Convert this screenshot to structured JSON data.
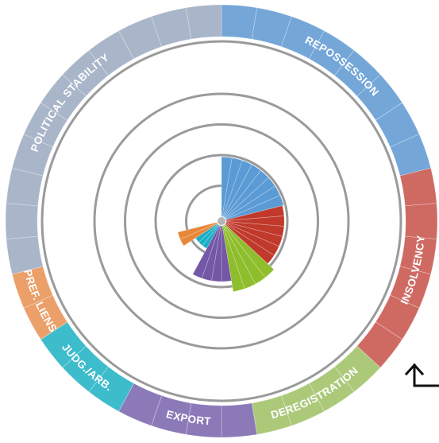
{
  "chart_data": {
    "type": "polar-area",
    "categories": [
      {
        "name": "REPOSSESSION",
        "label": "REPOSSESSION",
        "color": "#5b9bd5",
        "ring_color": "#74a6d8",
        "values": [
          9.7,
          9.7,
          9.7,
          9.7,
          9.7,
          9.7,
          9.7,
          9.7
        ]
      },
      {
        "name": "INSOLVENCY",
        "label": "INSOLVENCY",
        "color": "#c0392b",
        "ring_color": "#cf6a63",
        "values": [
          9.5,
          9.5,
          9.5,
          9.5,
          9.5,
          9.5
        ]
      },
      {
        "name": "DEREGISTRATION",
        "label": "DEREGISTRATION",
        "color": "#8fbe2c",
        "ring_color": "#acc97a",
        "values": [
          10.9,
          10.9,
          10.9,
          10.9
        ]
      },
      {
        "name": "EXPORT",
        "label": "EXPORT",
        "color": "#7457a6",
        "ring_color": "#8c79b8",
        "values": [
          9.1,
          9.1,
          9.1,
          9.1
        ]
      },
      {
        "name": "JUDG./ARB.",
        "label": "JUDG./ARB.",
        "color": "#1aaec7",
        "ring_color": "#3dbccc",
        "values": [
          4.3,
          4.3,
          4.3
        ]
      },
      {
        "name": "PREF. LIENS",
        "label": "PREF. LIENS",
        "color": "#e8873a",
        "ring_color": "#eba06a",
        "values": [
          6.6,
          6.6
        ]
      },
      {
        "name": "POLITICAL STABILITY",
        "label": "POLITICAL STABILITY",
        "color": "#a9b5c8",
        "ring_color": "#a9b5c8",
        "values": [
          0,
          0,
          0,
          0,
          0,
          0,
          0,
          0,
          0,
          0,
          0
        ]
      }
    ],
    "radial_max": 20,
    "rings": [
      5,
      10,
      15,
      20
    ],
    "grid": true,
    "legend": "none"
  }
}
